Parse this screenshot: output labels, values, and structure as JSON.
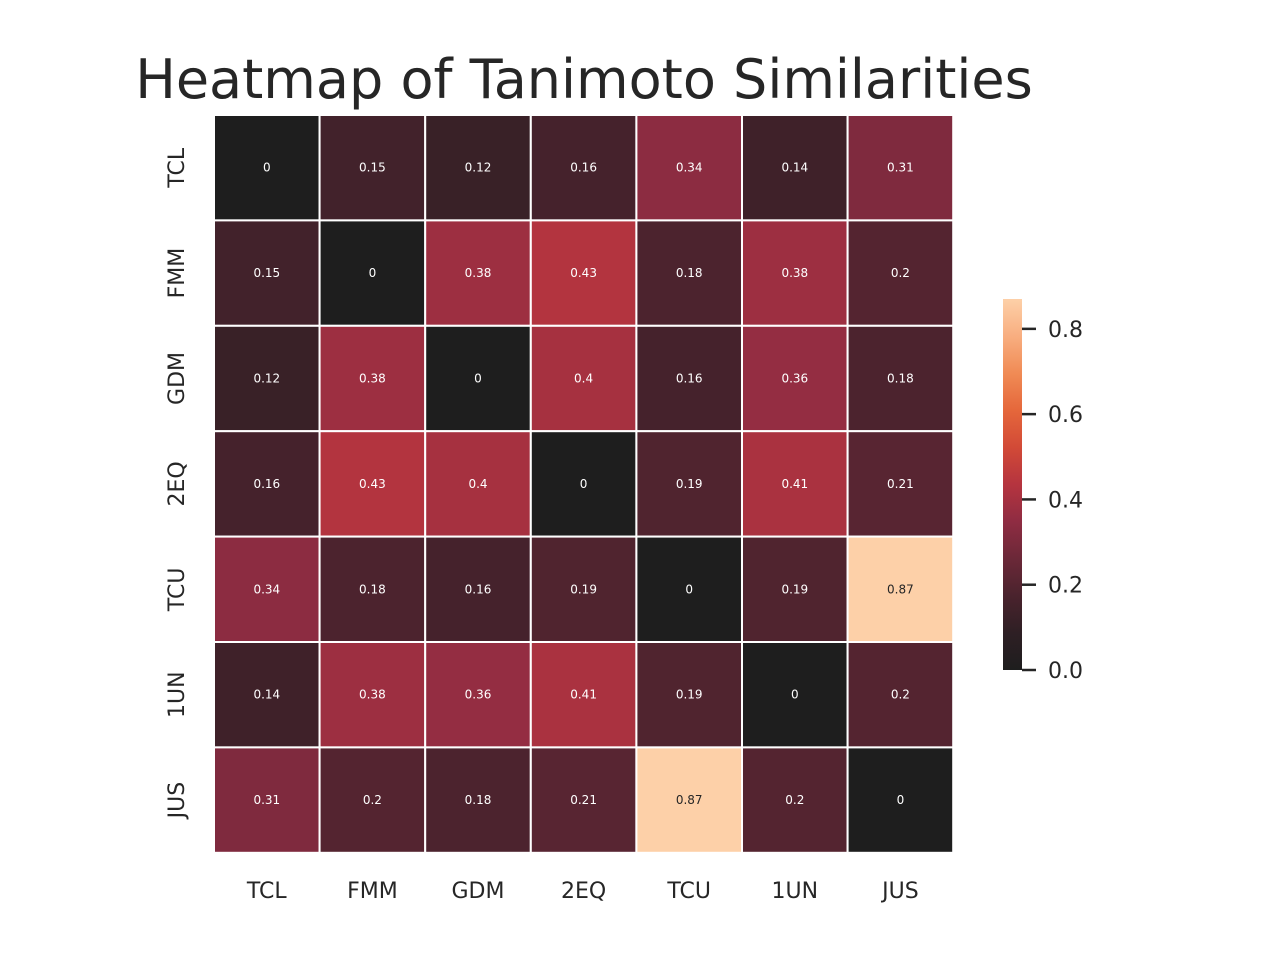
{
  "chart_data": {
    "type": "heatmap",
    "title": "Heatmap of Tanimoto Similarities",
    "xlabel": "",
    "ylabel": "",
    "row_labels": [
      "TCL",
      "FMM",
      "GDM",
      "2EQ",
      "TCU",
      "1UN",
      "JUS"
    ],
    "col_labels": [
      "TCL",
      "FMM",
      "GDM",
      "2EQ",
      "TCU",
      "1UN",
      "JUS"
    ],
    "values": [
      [
        0,
        0.15,
        0.12,
        0.16,
        0.34,
        0.14,
        0.31
      ],
      [
        0.15,
        0,
        0.38,
        0.43,
        0.18,
        0.38,
        0.2
      ],
      [
        0.12,
        0.38,
        0,
        0.4,
        0.16,
        0.36,
        0.18
      ],
      [
        0.16,
        0.43,
        0.4,
        0,
        0.19,
        0.41,
        0.21
      ],
      [
        0.34,
        0.18,
        0.16,
        0.19,
        0,
        0.19,
        0.87
      ],
      [
        0.14,
        0.38,
        0.36,
        0.41,
        0.19,
        0,
        0.2
      ],
      [
        0.31,
        0.2,
        0.18,
        0.21,
        0.87,
        0.2,
        0
      ]
    ],
    "value_labels": [
      [
        "0",
        "0.15",
        "0.12",
        "0.16",
        "0.34",
        "0.14",
        "0.31"
      ],
      [
        "0.15",
        "0",
        "0.38",
        "0.43",
        "0.18",
        "0.38",
        "0.2"
      ],
      [
        "0.12",
        "0.38",
        "0",
        "0.4",
        "0.16",
        "0.36",
        "0.18"
      ],
      [
        "0.16",
        "0.43",
        "0.4",
        "0",
        "0.19",
        "0.41",
        "0.21"
      ],
      [
        "0.34",
        "0.18",
        "0.16",
        "0.19",
        "0",
        "0.19",
        "0.87"
      ],
      [
        "0.14",
        "0.38",
        "0.36",
        "0.41",
        "0.19",
        "0",
        "0.2"
      ],
      [
        "0.31",
        "0.2",
        "0.18",
        "0.21",
        "0.87",
        "0.2",
        "0"
      ]
    ],
    "colorbar": {
      "range": [
        0,
        0.87
      ],
      "ticks": [
        0.0,
        0.2,
        0.4,
        0.6,
        0.8
      ],
      "tick_labels": [
        "0.0",
        "0.2",
        "0.4",
        "0.6",
        "0.8"
      ],
      "colormap": "rocket",
      "colormap_stops": [
        "#1e1e1e",
        "#2e1f24",
        "#4a232d",
        "#6b2838",
        "#8f2c42",
        "#b5343f",
        "#d24a37",
        "#e5673b",
        "#f08b55",
        "#f8ae80",
        "#fdd0a8"
      ]
    },
    "grid": false,
    "cell_separator_color": "#ffffff",
    "text_colors": {
      "dark_cells": "#ffffff",
      "light_cells": "#262626"
    }
  }
}
